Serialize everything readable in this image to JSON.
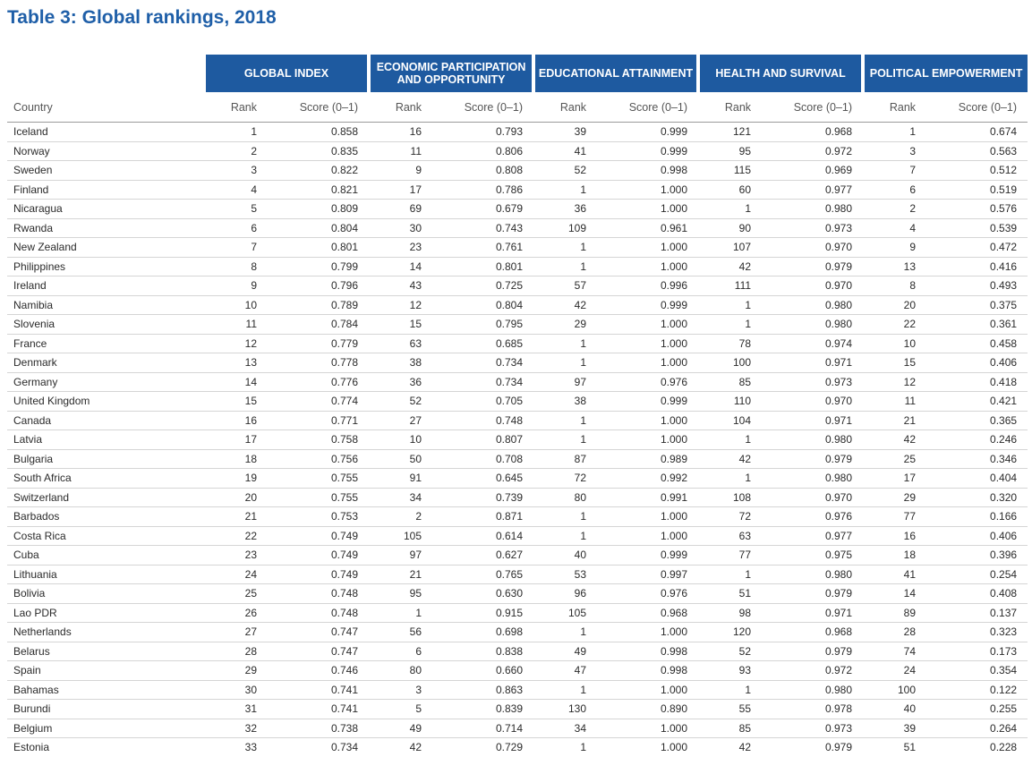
{
  "title": "Table 3: Global rankings, 2018",
  "groups": [
    "GLOBAL INDEX",
    "ECONOMIC PARTICIPATION AND OPPORTUNITY",
    "EDUCATIONAL ATTAINMENT",
    "HEALTH AND SURVIVAL",
    "POLITICAL EMPOWERMENT"
  ],
  "subheaders": {
    "country": "Country",
    "rank": "Rank",
    "score": "Score (0–1)"
  },
  "rows": [
    [
      "Iceland",
      "1",
      "0.858",
      "16",
      "0.793",
      "39",
      "0.999",
      "121",
      "0.968",
      "1",
      "0.674"
    ],
    [
      "Norway",
      "2",
      "0.835",
      "11",
      "0.806",
      "41",
      "0.999",
      "95",
      "0.972",
      "3",
      "0.563"
    ],
    [
      "Sweden",
      "3",
      "0.822",
      "9",
      "0.808",
      "52",
      "0.998",
      "115",
      "0.969",
      "7",
      "0.512"
    ],
    [
      "Finland",
      "4",
      "0.821",
      "17",
      "0.786",
      "1",
      "1.000",
      "60",
      "0.977",
      "6",
      "0.519"
    ],
    [
      "Nicaragua",
      "5",
      "0.809",
      "69",
      "0.679",
      "36",
      "1.000",
      "1",
      "0.980",
      "2",
      "0.576"
    ],
    [
      "Rwanda",
      "6",
      "0.804",
      "30",
      "0.743",
      "109",
      "0.961",
      "90",
      "0.973",
      "4",
      "0.539"
    ],
    [
      "New Zealand",
      "7",
      "0.801",
      "23",
      "0.761",
      "1",
      "1.000",
      "107",
      "0.970",
      "9",
      "0.472"
    ],
    [
      "Philippines",
      "8",
      "0.799",
      "14",
      "0.801",
      "1",
      "1.000",
      "42",
      "0.979",
      "13",
      "0.416"
    ],
    [
      "Ireland",
      "9",
      "0.796",
      "43",
      "0.725",
      "57",
      "0.996",
      "111",
      "0.970",
      "8",
      "0.493"
    ],
    [
      "Namibia",
      "10",
      "0.789",
      "12",
      "0.804",
      "42",
      "0.999",
      "1",
      "0.980",
      "20",
      "0.375"
    ],
    [
      "Slovenia",
      "11",
      "0.784",
      "15",
      "0.795",
      "29",
      "1.000",
      "1",
      "0.980",
      "22",
      "0.361"
    ],
    [
      "France",
      "12",
      "0.779",
      "63",
      "0.685",
      "1",
      "1.000",
      "78",
      "0.974",
      "10",
      "0.458"
    ],
    [
      "Denmark",
      "13",
      "0.778",
      "38",
      "0.734",
      "1",
      "1.000",
      "100",
      "0.971",
      "15",
      "0.406"
    ],
    [
      "Germany",
      "14",
      "0.776",
      "36",
      "0.734",
      "97",
      "0.976",
      "85",
      "0.973",
      "12",
      "0.418"
    ],
    [
      "United Kingdom",
      "15",
      "0.774",
      "52",
      "0.705",
      "38",
      "0.999",
      "110",
      "0.970",
      "11",
      "0.421"
    ],
    [
      "Canada",
      "16",
      "0.771",
      "27",
      "0.748",
      "1",
      "1.000",
      "104",
      "0.971",
      "21",
      "0.365"
    ],
    [
      "Latvia",
      "17",
      "0.758",
      "10",
      "0.807",
      "1",
      "1.000",
      "1",
      "0.980",
      "42",
      "0.246"
    ],
    [
      "Bulgaria",
      "18",
      "0.756",
      "50",
      "0.708",
      "87",
      "0.989",
      "42",
      "0.979",
      "25",
      "0.346"
    ],
    [
      "South Africa",
      "19",
      "0.755",
      "91",
      "0.645",
      "72",
      "0.992",
      "1",
      "0.980",
      "17",
      "0.404"
    ],
    [
      "Switzerland",
      "20",
      "0.755",
      "34",
      "0.739",
      "80",
      "0.991",
      "108",
      "0.970",
      "29",
      "0.320"
    ],
    [
      "Barbados",
      "21",
      "0.753",
      "2",
      "0.871",
      "1",
      "1.000",
      "72",
      "0.976",
      "77",
      "0.166"
    ],
    [
      "Costa Rica",
      "22",
      "0.749",
      "105",
      "0.614",
      "1",
      "1.000",
      "63",
      "0.977",
      "16",
      "0.406"
    ],
    [
      "Cuba",
      "23",
      "0.749",
      "97",
      "0.627",
      "40",
      "0.999",
      "77",
      "0.975",
      "18",
      "0.396"
    ],
    [
      "Lithuania",
      "24",
      "0.749",
      "21",
      "0.765",
      "53",
      "0.997",
      "1",
      "0.980",
      "41",
      "0.254"
    ],
    [
      "Bolivia",
      "25",
      "0.748",
      "95",
      "0.630",
      "96",
      "0.976",
      "51",
      "0.979",
      "14",
      "0.408"
    ],
    [
      "Lao PDR",
      "26",
      "0.748",
      "1",
      "0.915",
      "105",
      "0.968",
      "98",
      "0.971",
      "89",
      "0.137"
    ],
    [
      "Netherlands",
      "27",
      "0.747",
      "56",
      "0.698",
      "1",
      "1.000",
      "120",
      "0.968",
      "28",
      "0.323"
    ],
    [
      "Belarus",
      "28",
      "0.747",
      "6",
      "0.838",
      "49",
      "0.998",
      "52",
      "0.979",
      "74",
      "0.173"
    ],
    [
      "Spain",
      "29",
      "0.746",
      "80",
      "0.660",
      "47",
      "0.998",
      "93",
      "0.972",
      "24",
      "0.354"
    ],
    [
      "Bahamas",
      "30",
      "0.741",
      "3",
      "0.863",
      "1",
      "1.000",
      "1",
      "0.980",
      "100",
      "0.122"
    ],
    [
      "Burundi",
      "31",
      "0.741",
      "5",
      "0.839",
      "130",
      "0.890",
      "55",
      "0.978",
      "40",
      "0.255"
    ],
    [
      "Belgium",
      "32",
      "0.738",
      "49",
      "0.714",
      "34",
      "1.000",
      "85",
      "0.973",
      "39",
      "0.264"
    ],
    [
      "Estonia",
      "33",
      "0.734",
      "42",
      "0.729",
      "1",
      "1.000",
      "42",
      "0.979",
      "51",
      "0.228"
    ]
  ]
}
